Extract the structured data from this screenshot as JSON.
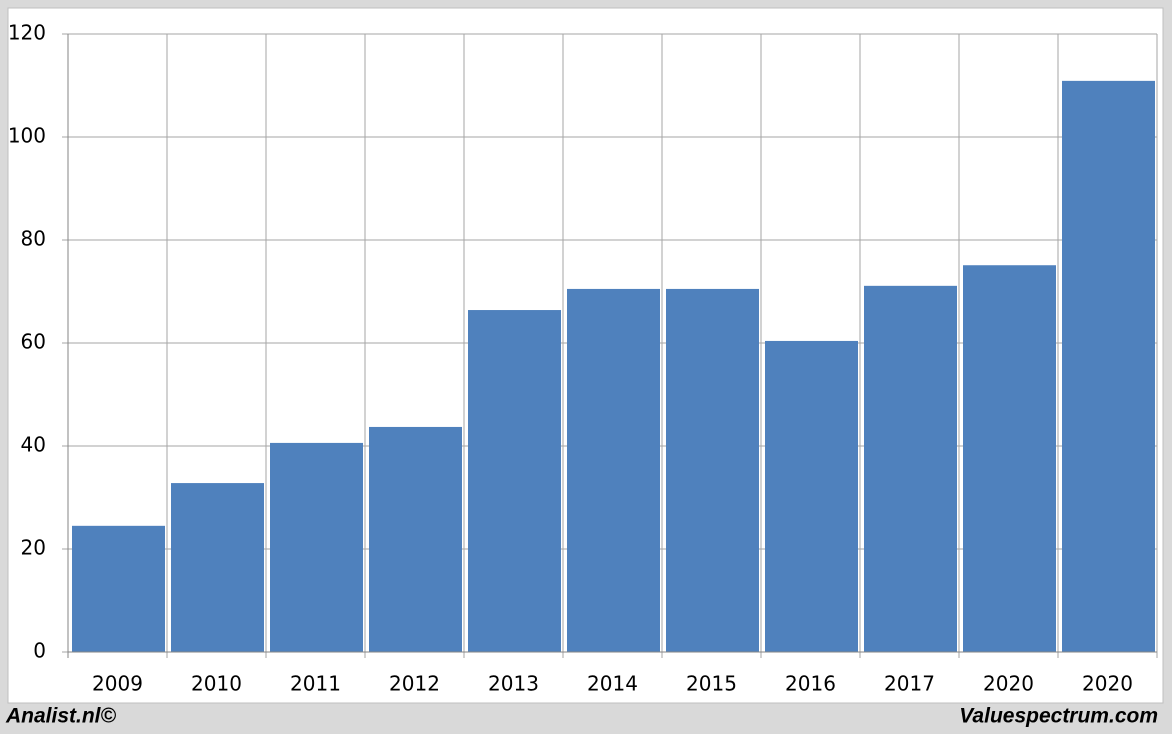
{
  "chart_data": {
    "type": "bar",
    "categories": [
      "2009",
      "2010",
      "2011",
      "2012",
      "2013",
      "2014",
      "2015",
      "2016",
      "2017",
      "2020",
      "2020"
    ],
    "values": [
      24.5,
      32.8,
      40.6,
      43.7,
      66.4,
      70.5,
      70.5,
      60.4,
      71.1,
      75.1,
      110.9
    ],
    "color": "#4f81bd",
    "ylim": [
      0,
      120
    ],
    "yticks": [
      0,
      20,
      40,
      60,
      80,
      100,
      120
    ],
    "grid": true,
    "source_left": "Analist.nl©",
    "source_right": "Valuespectrum.com"
  }
}
